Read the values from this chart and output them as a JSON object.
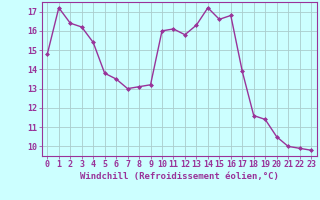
{
  "x": [
    0,
    1,
    2,
    3,
    4,
    5,
    6,
    7,
    8,
    9,
    10,
    11,
    12,
    13,
    14,
    15,
    16,
    17,
    18,
    19,
    20,
    21,
    22,
    23
  ],
  "y": [
    14.8,
    17.2,
    16.4,
    16.2,
    15.4,
    13.8,
    13.5,
    13.0,
    13.1,
    13.2,
    16.0,
    16.1,
    15.8,
    16.3,
    17.2,
    16.6,
    16.8,
    13.9,
    11.6,
    11.4,
    10.5,
    10.0,
    9.9,
    9.8
  ],
  "line_color": "#993399",
  "marker": "D",
  "marker_size": 2,
  "bg_color": "#ccffff",
  "grid_color": "#aacccc",
  "xlabel": "Windchill (Refroidissement éolien,°C)",
  "xlim": [
    -0.5,
    23.5
  ],
  "ylim": [
    9.5,
    17.5
  ],
  "yticks": [
    10,
    11,
    12,
    13,
    14,
    15,
    16,
    17
  ],
  "xticks": [
    0,
    1,
    2,
    3,
    4,
    5,
    6,
    7,
    8,
    9,
    10,
    11,
    12,
    13,
    14,
    15,
    16,
    17,
    18,
    19,
    20,
    21,
    22,
    23
  ],
  "tick_color": "#993399",
  "label_fontsize": 6.5,
  "tick_fontsize": 6.0,
  "linewidth": 1.0
}
